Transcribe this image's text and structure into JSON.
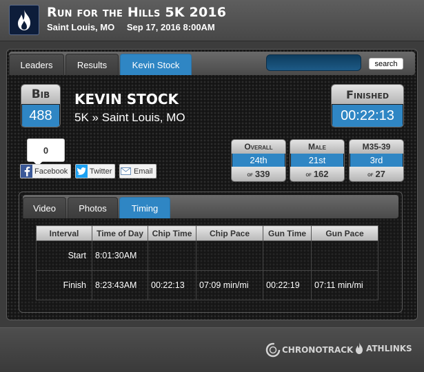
{
  "header": {
    "title": "Run for the Hills 5K 2016",
    "location": "Saint Louis, MO",
    "date": "Sep 17, 2016 8:00AM",
    "logo_icon": "flame-icon"
  },
  "nav": {
    "tabs": [
      {
        "label": "Leaders",
        "active": false
      },
      {
        "label": "Results",
        "active": false
      },
      {
        "label": "Kevin Stock",
        "active": true
      }
    ],
    "search_value": "",
    "search_button": "search"
  },
  "athlete": {
    "bib_label": "Bib",
    "bib": "488",
    "name": "KEVIN STOCK",
    "event": "5K » Saint Louis, MO",
    "finished_label": "Finished",
    "finish_time": "00:22:13"
  },
  "share": {
    "count": "0",
    "facebook": "Facebook",
    "twitter": "Twitter",
    "email": "Email"
  },
  "rankings": [
    {
      "label": "Overall",
      "place": "24th",
      "of_label": "of",
      "total": "339"
    },
    {
      "label": "Male",
      "place": "21st",
      "of_label": "of",
      "total": "162"
    },
    {
      "label": "M35-39",
      "place": "3rd",
      "of_label": "of",
      "total": "27"
    }
  ],
  "detail_tabs": [
    {
      "label": "Video",
      "active": false
    },
    {
      "label": "Photos",
      "active": false
    },
    {
      "label": "Timing",
      "active": true
    }
  ],
  "timing": {
    "headers": [
      "Interval",
      "Time of Day",
      "Chip Time",
      "Chip Pace",
      "Gun Time",
      "Gun Pace"
    ],
    "rows": [
      [
        "Start",
        "8:01:30AM",
        "",
        "",
        "",
        ""
      ],
      [
        "Finish",
        "8:23:43AM",
        "00:22:13",
        "07:09 min/mi",
        "00:22:19",
        "07:11 min/mi"
      ]
    ]
  },
  "footer": {
    "chronotrack": "CHRONOTRACK",
    "athlinks": "ATHLINKS"
  },
  "colors": {
    "accent": "#2f86c4",
    "background": "#3c3c3c",
    "panel": "#151515"
  }
}
